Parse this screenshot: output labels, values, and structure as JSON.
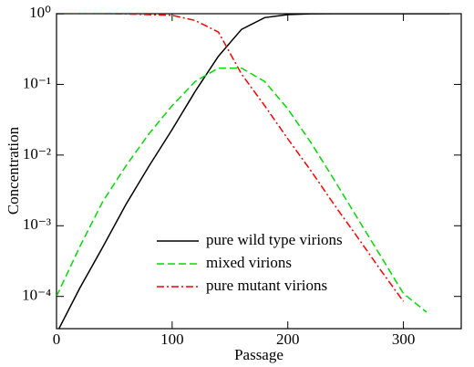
{
  "chart_data": {
    "type": "line",
    "x_label": "Passage",
    "y_label": "Concentration",
    "log_y": true,
    "legend": "bottom-center",
    "x": [
      0,
      20,
      40,
      60,
      80,
      100,
      120,
      140,
      160,
      180,
      200,
      220,
      240,
      260,
      280,
      300,
      320,
      340
    ],
    "series": [
      {
        "name": "pure wild type virions",
        "color": "#000000",
        "dash": "solid",
        "values": [
          3e-05,
          0.00013,
          0.0005,
          0.002,
          0.007,
          0.023,
          0.08,
          0.25,
          0.6,
          0.88,
          0.97,
          0.995,
          1,
          1,
          1,
          1,
          1,
          1
        ]
      },
      {
        "name": "mixed virions",
        "color": "#00dd00",
        "dash": "dashed",
        "values": [
          0.0001,
          0.0005,
          0.0022,
          0.007,
          0.02,
          0.05,
          0.11,
          0.17,
          0.17,
          0.11,
          0.045,
          0.015,
          0.0045,
          0.0013,
          0.00038,
          0.00011,
          6e-05,
          null
        ]
      },
      {
        "name": "pure mutant virions",
        "color": "#ff0000",
        "dash": "dashdot",
        "values": [
          1,
          1,
          1,
          0.99,
          0.97,
          0.95,
          0.8,
          0.55,
          0.14,
          0.05,
          0.017,
          0.006,
          0.002,
          0.0007,
          0.00024,
          8.5e-05,
          null,
          null
        ]
      }
    ],
    "xlim": [
      0,
      350
    ],
    "xticks": [
      0,
      100,
      200,
      300
    ],
    "ylim": [
      3.5e-05,
      1
    ],
    "yticks": [
      {
        "value": 0.0001,
        "label": "10⁻⁴"
      },
      {
        "value": 0.001,
        "label": "10⁻³"
      },
      {
        "value": 0.01,
        "label": "10⁻²"
      },
      {
        "value": 0.1,
        "label": "10⁻¹"
      },
      {
        "value": 1,
        "label": "10⁰"
      }
    ]
  }
}
